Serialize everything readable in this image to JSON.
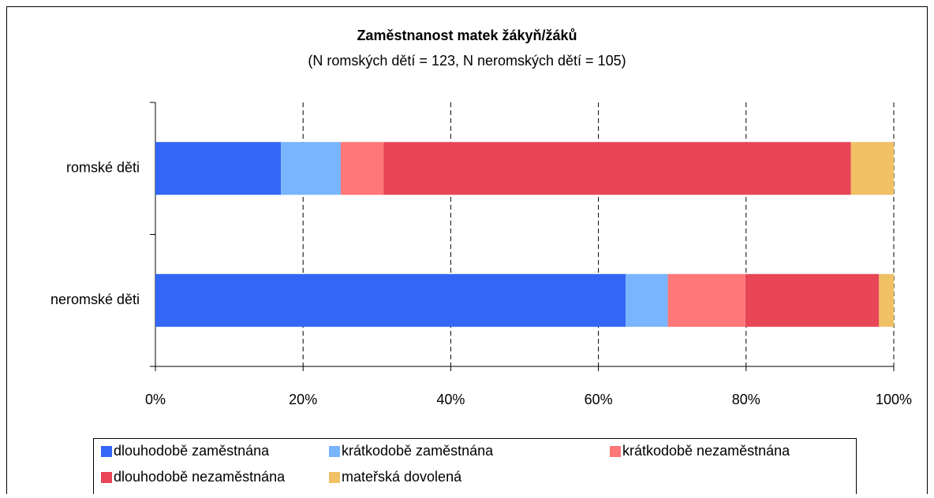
{
  "chart_data": {
    "type": "stacked-barh",
    "title": "Zaměstnanost matek žákyň/žáků",
    "subtitle": "(N romských dětí = 123, N neromských dětí = 105)",
    "categories": [
      "romské děti",
      "neromské děti"
    ],
    "series": [
      {
        "name": "dlouhodobě zaměstnána",
        "color": "#3366f5",
        "values": [
          17.0,
          63.7
        ]
      },
      {
        "name": "krátkodobě zaměstnána",
        "color": "#79b4ff",
        "values": [
          8.1,
          5.7
        ]
      },
      {
        "name": "krátkodobě nezaměstnána",
        "color": "#ff7777",
        "values": [
          5.8,
          10.5
        ]
      },
      {
        "name": "dlouhodobě nezaměstnána",
        "color": "#e84556",
        "values": [
          63.3,
          18.1
        ]
      },
      {
        "name": "mateřská dovolená",
        "color": "#f0c065",
        "values": [
          5.8,
          2.0
        ]
      }
    ],
    "xlim": [
      0,
      100
    ],
    "xticks": [
      {
        "value": 0,
        "label": "0%"
      },
      {
        "value": 20,
        "label": "20%"
      },
      {
        "value": 40,
        "label": "40%"
      },
      {
        "value": 60,
        "label": "60%"
      },
      {
        "value": 80,
        "label": "80%"
      },
      {
        "value": 100,
        "label": "100%"
      }
    ],
    "grid": true
  }
}
